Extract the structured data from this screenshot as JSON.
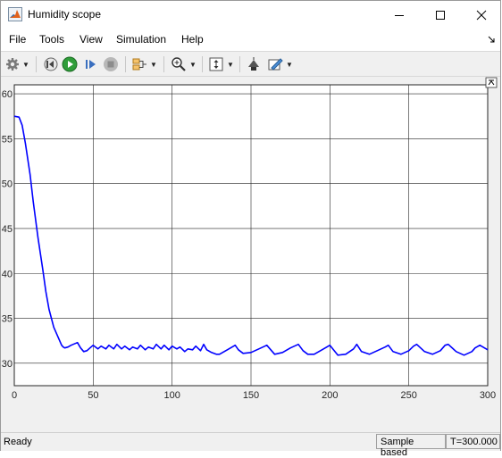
{
  "window": {
    "title": "Humidity scope"
  },
  "menu": {
    "items": [
      "File",
      "Tools",
      "View",
      "Simulation",
      "Help"
    ]
  },
  "toolbar": {
    "icons": [
      "gear-icon",
      "step-back-icon",
      "run-icon",
      "step-forward-icon",
      "stop-icon",
      "signal-selector-icon",
      "zoom-icon",
      "scale-axes-icon",
      "highlight-block-icon",
      "style-icon"
    ]
  },
  "status": {
    "ready": "Ready",
    "mode": "Sample based",
    "time": "T=300.000"
  },
  "colors": {
    "line": "#0000ff",
    "plot_bg": "#ffffff",
    "grid": "#262626"
  },
  "chart_data": {
    "type": "line",
    "title": "",
    "xlabel": "",
    "ylabel": "",
    "xlim": [
      0,
      300
    ],
    "ylim": [
      27.5,
      61
    ],
    "xticks": [
      0,
      50,
      100,
      150,
      200,
      250,
      300
    ],
    "yticks": [
      30,
      35,
      40,
      45,
      50,
      55,
      60
    ],
    "grid": true,
    "series": [
      {
        "x": [
          0,
          3,
          5,
          7,
          10,
          12,
          15,
          18,
          20,
          22,
          25,
          28,
          30,
          31,
          32,
          34,
          36,
          40,
          42,
          44,
          46,
          48,
          50,
          53,
          55,
          58,
          60,
          63,
          65,
          68,
          70,
          73,
          75,
          78,
          80,
          83,
          85,
          88,
          90,
          93,
          95,
          98,
          100,
          103,
          105,
          108,
          110,
          113,
          115,
          118,
          120,
          122,
          125,
          128,
          130,
          135,
          140,
          142,
          145,
          150,
          155,
          160,
          163,
          165,
          170,
          175,
          180,
          183,
          186,
          190,
          195,
          200,
          205,
          210,
          215,
          217,
          220,
          225,
          230,
          235,
          237,
          240,
          245,
          250,
          253,
          255,
          260,
          265,
          270,
          273,
          275,
          280,
          285,
          290,
          292,
          295,
          300
        ],
        "y": [
          57.5,
          57.4,
          56.5,
          54.5,
          51.0,
          48.0,
          44.0,
          40.5,
          38.0,
          36.0,
          34.0,
          32.8,
          32.0,
          31.8,
          31.7,
          31.8,
          32.0,
          32.3,
          31.7,
          31.3,
          31.4,
          31.7,
          32.0,
          31.6,
          31.9,
          31.6,
          32.0,
          31.6,
          32.1,
          31.6,
          31.9,
          31.5,
          31.8,
          31.6,
          32.0,
          31.5,
          31.8,
          31.6,
          32.1,
          31.6,
          32.0,
          31.5,
          31.9,
          31.6,
          31.8,
          31.3,
          31.6,
          31.5,
          31.9,
          31.4,
          32.1,
          31.5,
          31.2,
          31.0,
          31.0,
          31.5,
          32.0,
          31.5,
          31.1,
          31.2,
          31.6,
          32.0,
          31.4,
          31.0,
          31.2,
          31.7,
          32.1,
          31.4,
          31.0,
          31.0,
          31.5,
          32.0,
          30.9,
          31.0,
          31.6,
          32.1,
          31.3,
          31.0,
          31.4,
          31.8,
          32.0,
          31.3,
          31.0,
          31.4,
          31.9,
          32.1,
          31.3,
          31.0,
          31.4,
          32.0,
          32.1,
          31.3,
          30.9,
          31.3,
          31.7,
          32.0,
          31.5
        ]
      }
    ]
  }
}
